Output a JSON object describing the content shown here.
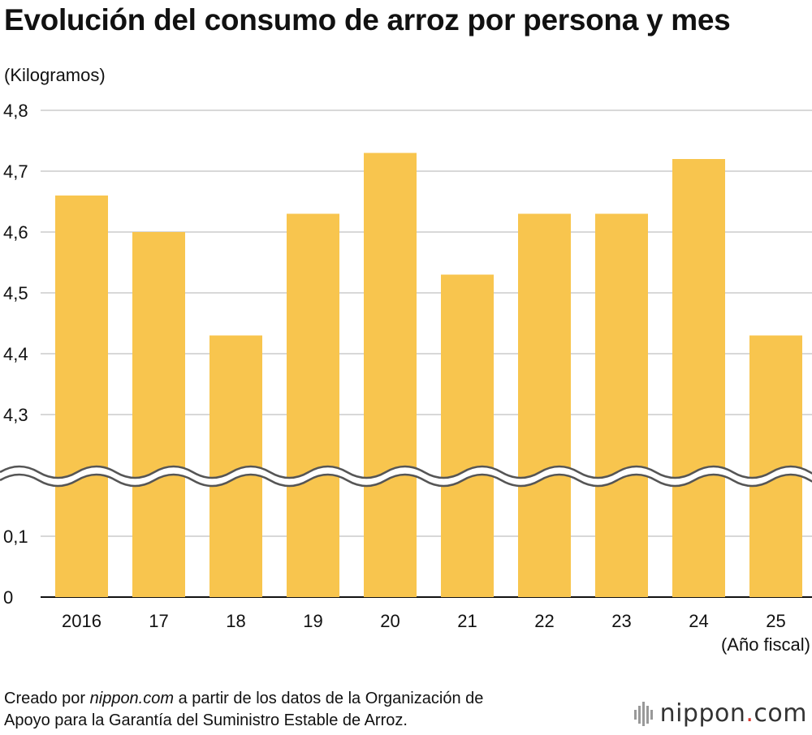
{
  "title": "Evolución del consumo de arroz por persona y mes",
  "footer": {
    "before": "Creado por ",
    "brand": "nippon.com",
    "after_line1": " a partir de los datos de la Organización de",
    "line2": "Apoyo para la Garantía del Suministro Estable de Arroz."
  },
  "logo": {
    "pre": "nippon",
    "dot": ".",
    "post": "com"
  },
  "colors": {
    "bar": "#f8c54e",
    "grid": "#cccccc",
    "axis": "#111111",
    "break": "#555555"
  },
  "chart_data": {
    "type": "bar",
    "categories": [
      "2016",
      "17",
      "18",
      "19",
      "20",
      "21",
      "22",
      "23",
      "24",
      "25"
    ],
    "values": [
      4.66,
      4.6,
      4.43,
      4.63,
      4.73,
      4.53,
      4.63,
      4.63,
      4.72,
      4.43
    ],
    "ylabel": "(Kilogramos)",
    "xlabel": "(Año fiscal)",
    "yticks_upper": [
      "4,3",
      "4,4",
      "4,5",
      "4,6",
      "4,7",
      "4,8"
    ],
    "yticks_lower": [
      "0",
      "0,1"
    ],
    "ylim": [
      0,
      4.8
    ],
    "axis_break": [
      0.1,
      4.3
    ],
    "grid": true,
    "legend": "none"
  }
}
